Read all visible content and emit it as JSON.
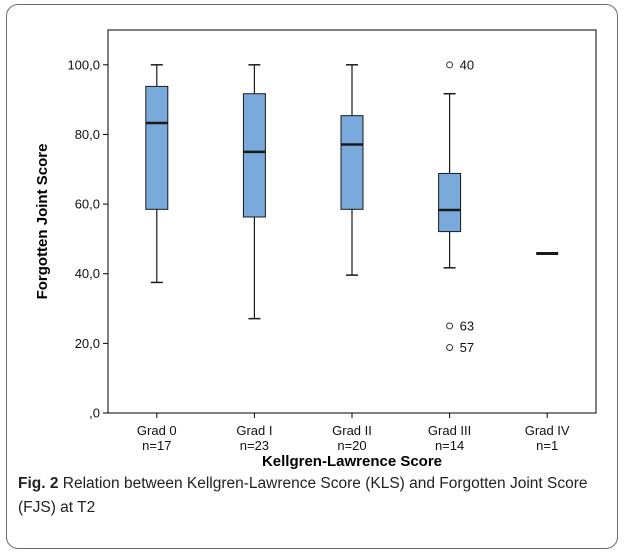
{
  "chart_data": {
    "type": "box",
    "xlabel": "Kellgren-Lawrence Score",
    "ylabel": "Forgotten Joint Score",
    "ylim": [
      0,
      110
    ],
    "yticks": [
      0,
      20,
      40,
      60,
      80,
      100
    ],
    "ytick_labels": [
      ",0",
      "20,0",
      "40,0",
      "60,0",
      "80,0",
      "100,0"
    ],
    "categories": [
      {
        "label": "Grad 0",
        "n_label": "n=17"
      },
      {
        "label": "Grad I",
        "n_label": "n=23"
      },
      {
        "label": "Grad II",
        "n_label": "n=20"
      },
      {
        "label": "Grad III",
        "n_label": "n=14"
      },
      {
        "label": "Grad IV",
        "n_label": "n=1"
      }
    ],
    "boxes": [
      {
        "whisker_low": 37.5,
        "q1": 58.5,
        "median": 83.3,
        "q3": 93.8,
        "whisker_high": 100,
        "outliers": []
      },
      {
        "whisker_low": 27.1,
        "q1": 56.3,
        "median": 75.0,
        "q3": 91.7,
        "whisker_high": 100,
        "outliers": []
      },
      {
        "whisker_low": 39.6,
        "q1": 58.5,
        "median": 77.1,
        "q3": 85.4,
        "whisker_high": 100,
        "outliers": []
      },
      {
        "whisker_low": 41.7,
        "q1": 52.1,
        "median": 58.3,
        "q3": 68.8,
        "whisker_high": 91.7,
        "outliers": [
          {
            "value": 100,
            "label": "40"
          },
          {
            "value": 25.0,
            "label": "63"
          },
          {
            "value": 18.8,
            "label": "57"
          }
        ]
      },
      {
        "whisker_low": 45.8,
        "q1": 45.8,
        "median": 45.8,
        "q3": 45.8,
        "whisker_high": 45.8,
        "outliers": []
      }
    ],
    "colors": {
      "box_fill": "#7aaadb",
      "box_stroke": "#1a1a1a",
      "axis": "#000000"
    },
    "grid": false
  },
  "caption": {
    "fig_label": "Fig. 2",
    "text": " Relation between Kellgren-Lawrence Score (KLS) and Forgotten Joint Score (FJS) at T2"
  }
}
